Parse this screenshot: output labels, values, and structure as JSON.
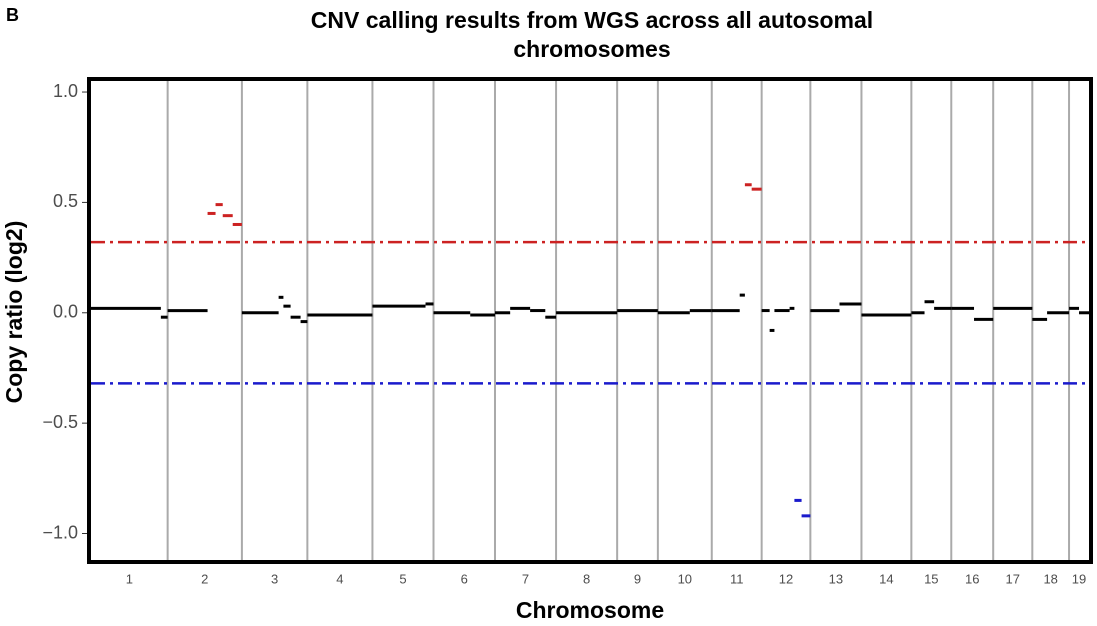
{
  "panel_label": "B",
  "chart_data": {
    "type": "segments",
    "title_lines": [
      "CNV calling results from WGS across all autosomal",
      "chromosomes"
    ],
    "x_label": "Chromosome",
    "y_label": "Copy ratio (log2)",
    "ylim": [
      -1.12,
      1.05
    ],
    "yticks": [
      {
        "value": -1,
        "label": "−1.0"
      },
      {
        "value": -0.5,
        "label": "−0.5"
      },
      {
        "value": 0,
        "label": "0.0"
      },
      {
        "value": 0.5,
        "label": "0.5"
      },
      {
        "value": 1,
        "label": "1.0"
      }
    ],
    "xlim": [
      0,
      2500
    ],
    "categories": [
      "1",
      "2",
      "3",
      "4",
      "5",
      "6",
      "7",
      "8",
      "9",
      "10",
      "11",
      "12",
      "13",
      "14",
      "15",
      "16",
      "17",
      "18",
      "19"
    ],
    "chromosome_ends": [
      192,
      378,
      542,
      705,
      858,
      1012,
      1165,
      1318,
      1420,
      1555,
      1680,
      1802,
      1930,
      2055,
      2155,
      2260,
      2358,
      2450,
      2500
    ],
    "thresholds": [
      {
        "value": 0.32,
        "color": "#cc2222"
      },
      {
        "value": -0.32,
        "color": "#1a1acc"
      }
    ],
    "segment_color": "#000000",
    "segments": {
      "x_start": [
        0,
        175,
        192,
        292,
        312,
        330,
        355,
        378,
        470,
        482,
        500,
        525,
        542,
        705,
        838,
        858,
        950,
        1012,
        1050,
        1100,
        1138,
        1165,
        1318,
        1420,
        1500,
        1555,
        1625,
        1638,
        1655,
        1680,
        1700,
        1712,
        1750,
        1762,
        1780,
        1802,
        1875,
        1930,
        2055,
        2088,
        2112,
        2155,
        2212,
        2260,
        2358,
        2395,
        2450,
        2475
      ],
      "x_end": [
        175,
        192,
        292,
        312,
        330,
        355,
        378,
        470,
        482,
        500,
        525,
        542,
        705,
        838,
        858,
        950,
        1012,
        1050,
        1100,
        1138,
        1165,
        1318,
        1420,
        1500,
        1555,
        1625,
        1638,
        1655,
        1680,
        1700,
        1712,
        1750,
        1762,
        1780,
        1802,
        1875,
        1930,
        2055,
        2088,
        2112,
        2155,
        2212,
        2260,
        2358,
        2395,
        2450,
        2475,
        2500
      ],
      "values": [
        0.02,
        -0.02,
        0.01,
        0.45,
        0.49,
        0.44,
        0.4,
        0.0,
        0.07,
        0.03,
        -0.02,
        -0.04,
        -0.01,
        0.03,
        0.04,
        0.0,
        -0.01,
        0.0,
        0.02,
        0.01,
        -0.02,
        0.0,
        0.01,
        0.0,
        0.01,
        0.01,
        0.08,
        0.58,
        0.56,
        0.01,
        -0.08,
        0.01,
        0.02,
        -0.85,
        -0.92,
        0.01,
        0.04,
        -0.01,
        0.0,
        0.05,
        0.02,
        0.02,
        -0.03,
        0.02,
        -0.03,
        0.0,
        0.02,
        0.0
      ]
    }
  }
}
